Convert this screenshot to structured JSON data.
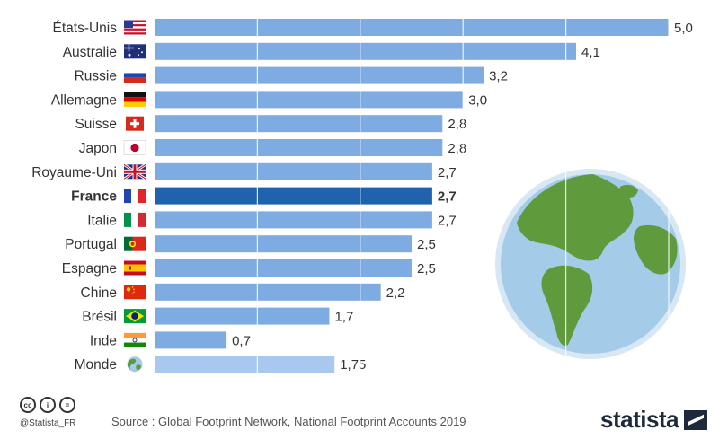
{
  "chart_data": {
    "type": "bar",
    "orientation": "horizontal",
    "xlim": [
      0,
      5.3
    ],
    "grid": true,
    "categories": [
      "États-Unis",
      "Australie",
      "Russie",
      "Allemagne",
      "Suisse",
      "Japon",
      "Royaume-Uni",
      "France",
      "Italie",
      "Portugal",
      "Espagne",
      "Chine",
      "Brésil",
      "Inde",
      "Monde"
    ],
    "values": [
      5.0,
      4.1,
      3.2,
      3.0,
      2.8,
      2.8,
      2.7,
      2.7,
      2.7,
      2.5,
      2.5,
      2.2,
      1.7,
      0.7,
      1.75
    ],
    "value_labels": [
      "5,0",
      "4,1",
      "3,2",
      "3,0",
      "2,8",
      "2,8",
      "2,7",
      "2,7",
      "2,7",
      "2,5",
      "2,5",
      "2,2",
      "1,7",
      "0,7",
      "1,75"
    ],
    "flags": [
      "us-flag",
      "au-flag",
      "ru-flag",
      "de-flag",
      "ch-flag",
      "jp-flag",
      "gb-flag",
      "fr-flag",
      "it-flag",
      "pt-flag",
      "es-flag",
      "cn-flag",
      "br-flag",
      "in-flag",
      "globe-icon"
    ],
    "highlight": "France",
    "colors": {
      "bar": "#7fabe3",
      "highlight": "#1f62ad",
      "world": "#a9c8f0",
      "ocean": "#a4cbe8",
      "land": "#5f9a3c"
    }
  },
  "footer": {
    "source": "Source : Global Footprint Network, National Footprint Accounts 2019",
    "handle": "@Statista_FR",
    "brand": "statista"
  }
}
